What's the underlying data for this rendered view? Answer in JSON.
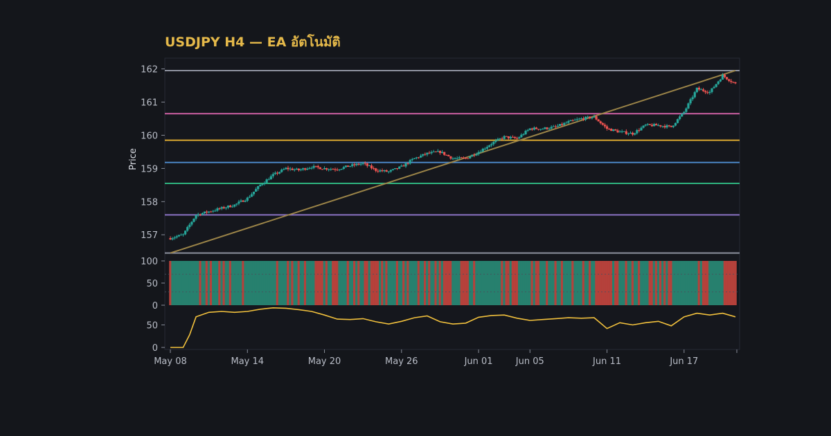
{
  "chart_data": {
    "type": "candlestick",
    "title": "USDJPY H4 — EA อัตโนมัติ",
    "ylabel": "Price",
    "x_range": [
      "2024-05-08",
      "2024-06-21"
    ],
    "x_ticks": [
      {
        "date": "2024-05-08",
        "label": "May 08"
      },
      {
        "date": "2024-05-14",
        "label": "May 14"
      },
      {
        "date": "2024-05-20",
        "label": "May 20"
      },
      {
        "date": "2024-05-26",
        "label": "May 26"
      },
      {
        "date": "2024-06-01",
        "label": "Jun 01"
      },
      {
        "date": "2024-06-05",
        "label": "Jun 05"
      },
      {
        "date": "2024-06-11",
        "label": "Jun 11"
      },
      {
        "date": "2024-06-17",
        "label": "Jun 17"
      }
    ],
    "price_panel": {
      "ylim": [
        156.4,
        162.2
      ],
      "y_ticks": [
        "157",
        "158",
        "159",
        "160",
        "161",
        "162"
      ],
      "close_path": [
        [
          "2024-05-08",
          156.9
        ],
        [
          "2024-05-09",
          157.0
        ],
        [
          "2024-05-10",
          157.6
        ],
        [
          "2024-05-11",
          157.7
        ],
        [
          "2024-05-13",
          157.9
        ],
        [
          "2024-05-14",
          158.1
        ],
        [
          "2024-05-15",
          158.5
        ],
        [
          "2024-05-16",
          158.8
        ],
        [
          "2024-05-17",
          159.0
        ],
        [
          "2024-05-18",
          158.95
        ],
        [
          "2024-05-19",
          159.05
        ],
        [
          "2024-05-20",
          159.0
        ],
        [
          "2024-05-21",
          158.98
        ],
        [
          "2024-05-22",
          159.08
        ],
        [
          "2024-05-23",
          159.15
        ],
        [
          "2024-05-24",
          158.95
        ],
        [
          "2024-05-25",
          158.9
        ],
        [
          "2024-05-26",
          159.05
        ],
        [
          "2024-05-27",
          159.3
        ],
        [
          "2024-05-28",
          159.45
        ],
        [
          "2024-05-29",
          159.5
        ],
        [
          "2024-05-30",
          159.3
        ],
        [
          "2024-05-31",
          159.3
        ],
        [
          "2024-06-01",
          159.5
        ],
        [
          "2024-06-02",
          159.75
        ],
        [
          "2024-06-03",
          159.95
        ],
        [
          "2024-06-04",
          159.9
        ],
        [
          "2024-06-05",
          160.2
        ],
        [
          "2024-06-06",
          160.2
        ],
        [
          "2024-06-07",
          160.25
        ],
        [
          "2024-06-08",
          160.4
        ],
        [
          "2024-06-09",
          160.5
        ],
        [
          "2024-06-10",
          160.55
        ],
        [
          "2024-06-11",
          160.2
        ],
        [
          "2024-06-12",
          160.1
        ],
        [
          "2024-06-13",
          160.05
        ],
        [
          "2024-06-14",
          160.3
        ],
        [
          "2024-06-15",
          160.3
        ],
        [
          "2024-06-16",
          160.25
        ],
        [
          "2024-06-17",
          160.7
        ],
        [
          "2024-06-18",
          161.4
        ],
        [
          "2024-06-19",
          161.3
        ],
        [
          "2024-06-20",
          161.8
        ],
        [
          "2024-06-21",
          161.55
        ]
      ],
      "horizontal_levels": [
        {
          "price": 161.95,
          "color": "#8f93a0"
        },
        {
          "price": 160.65,
          "color": "#cc5fa2"
        },
        {
          "price": 159.85,
          "color": "#d9a730"
        },
        {
          "price": 159.18,
          "color": "#4b86c5"
        },
        {
          "price": 158.55,
          "color": "#2eb37f"
        },
        {
          "price": 157.6,
          "color": "#8a72c4"
        },
        {
          "price": 156.45,
          "color": "#8f93a0"
        }
      ],
      "trendline": {
        "from": [
          "2024-05-08",
          156.45
        ],
        "to": [
          "2024-06-21",
          161.95
        ],
        "color": "#9b8448"
      }
    },
    "oscillator_panel_1": {
      "ylim": [
        0,
        100
      ],
      "y_ticks": [
        "0",
        "50",
        "100"
      ],
      "type": "bar",
      "colors": {
        "up": "#27806e",
        "down": "#b5413b"
      }
    },
    "oscillator_panel_2": {
      "ylim": [
        0,
        100
      ],
      "y_ticks": [
        "0",
        "50"
      ],
      "type": "line",
      "color": "#f2c13d",
      "values": [
        [
          "2024-05-08",
          0
        ],
        [
          "2024-05-09",
          0
        ],
        [
          "2024-05-09T12",
          28
        ],
        [
          "2024-05-10",
          68
        ],
        [
          "2024-05-11",
          78
        ],
        [
          "2024-05-12",
          80
        ],
        [
          "2024-05-13",
          78
        ],
        [
          "2024-05-14",
          80
        ],
        [
          "2024-05-15",
          85
        ],
        [
          "2024-05-16",
          88
        ],
        [
          "2024-05-17",
          87
        ],
        [
          "2024-05-18",
          84
        ],
        [
          "2024-05-19",
          80
        ],
        [
          "2024-05-20",
          72
        ],
        [
          "2024-05-21",
          63
        ],
        [
          "2024-05-22",
          62
        ],
        [
          "2024-05-23",
          64
        ],
        [
          "2024-05-24",
          57
        ],
        [
          "2024-05-25",
          52
        ],
        [
          "2024-05-26",
          58
        ],
        [
          "2024-05-27",
          66
        ],
        [
          "2024-05-28",
          70
        ],
        [
          "2024-05-29",
          57
        ],
        [
          "2024-05-30",
          52
        ],
        [
          "2024-05-31",
          54
        ],
        [
          "2024-06-01",
          67
        ],
        [
          "2024-06-02",
          71
        ],
        [
          "2024-06-03",
          72
        ],
        [
          "2024-06-04",
          65
        ],
        [
          "2024-06-05",
          60
        ],
        [
          "2024-06-06",
          62
        ],
        [
          "2024-06-07",
          64
        ],
        [
          "2024-06-08",
          66
        ],
        [
          "2024-06-09",
          65
        ],
        [
          "2024-06-10",
          66
        ],
        [
          "2024-06-11",
          42
        ],
        [
          "2024-06-12",
          55
        ],
        [
          "2024-06-13",
          50
        ],
        [
          "2024-06-14",
          55
        ],
        [
          "2024-06-15",
          58
        ],
        [
          "2024-06-16",
          48
        ],
        [
          "2024-06-17",
          68
        ],
        [
          "2024-06-18",
          76
        ],
        [
          "2024-06-19",
          72
        ],
        [
          "2024-06-20",
          76
        ],
        [
          "2024-06-21",
          68
        ]
      ]
    },
    "colors": {
      "up": "#26a69a",
      "down": "#ef5350",
      "background": "#14161b",
      "panel": "#15171d"
    }
  }
}
